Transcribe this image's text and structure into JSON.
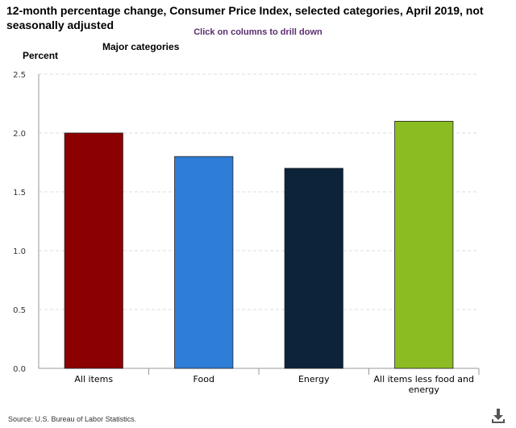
{
  "header": {
    "title": "12-month percentage change, Consumer Price Index, selected categories, April 2019, not seasonally adjusted",
    "drill_hint": "Click on columns to drill down",
    "y_axis_label": "Percent",
    "subtitle": "Major categories"
  },
  "footer": {
    "source": "Source: U.S. Bureau of Labor Statistics."
  },
  "icons": {
    "download": "download-icon"
  },
  "chart_data": {
    "type": "bar",
    "title": "12-month percentage change, Consumer Price Index, selected categories, April 2019, not seasonally adjusted",
    "subtitle": "Major categories",
    "ylabel": "Percent",
    "xlabel": "",
    "categories": [
      {
        "label": [
          "All items"
        ],
        "value": 2.0,
        "color": "#8b0000"
      },
      {
        "label": [
          "Food"
        ],
        "value": 1.8,
        "color": "#2e7dd6"
      },
      {
        "label": [
          "Energy"
        ],
        "value": 1.7,
        "color": "#0d233a"
      },
      {
        "label": [
          "All items less food and",
          "energy"
        ],
        "value": 2.1,
        "color": "#8bbc21"
      }
    ],
    "ylim": [
      0,
      2.5
    ],
    "yticks": [
      "0.0",
      "0.5",
      "1.0",
      "1.5",
      "2.0",
      "2.5"
    ],
    "grid": true,
    "legend": "none"
  }
}
